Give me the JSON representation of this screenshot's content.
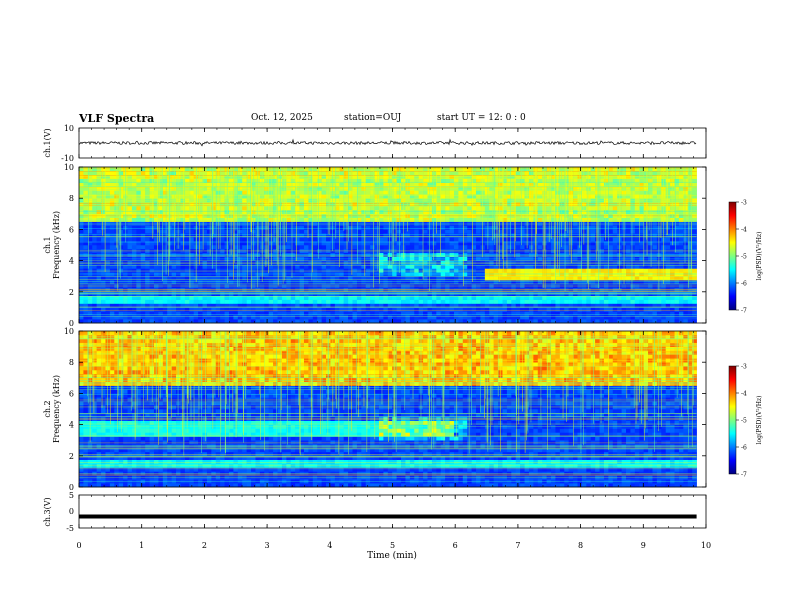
{
  "header": {
    "title": "VLF Spectra",
    "date": "Oct. 12, 2025",
    "station": "station=OUJ",
    "start_time": "start UT =   12: 0  : 0"
  },
  "chart_data": [
    {
      "type": "line",
      "name": "ch1-waveform",
      "ylabel": "ch.1(V)",
      "ylim": [
        -10,
        10
      ],
      "ytick_labels": [
        "10",
        "-10"
      ],
      "baseline_value": 0,
      "amplitude_approx": 1
    },
    {
      "type": "heatmap",
      "name": "ch1-spectrogram",
      "ylabel": "ch.1 Frequency (kHz)",
      "ylim": [
        0,
        10
      ],
      "yticks": [
        0,
        2,
        4,
        6,
        8,
        10
      ],
      "colorbar": {
        "label": "log(PSD)(V²/Hz)",
        "range": [
          -7,
          -3
        ],
        "ticks": [
          -3,
          -4,
          -5,
          -6,
          -7
        ]
      }
    },
    {
      "type": "heatmap",
      "name": "ch2-spectrogram",
      "ylabel": "ch.2 Frequency (kHz)",
      "ylim": [
        0,
        10
      ],
      "yticks": [
        0,
        2,
        4,
        6,
        8,
        10
      ],
      "colorbar": {
        "label": "log(PSD)(V²/Hz)",
        "range": [
          -7,
          -3
        ],
        "ticks": [
          -3,
          -4,
          -5,
          -6,
          -7
        ]
      }
    },
    {
      "type": "line",
      "name": "ch3-waveform",
      "ylabel": "ch.3(V)",
      "ylim": [
        -5,
        5
      ],
      "ytick_labels": [
        "5",
        "0",
        "-5"
      ],
      "baseline_value": -1.5
    }
  ],
  "xaxis": {
    "xlabel": "Time (min)",
    "xlim": [
      0,
      10
    ],
    "xticks": [
      0,
      1,
      2,
      3,
      4,
      5,
      6,
      7,
      8,
      9,
      10
    ],
    "data_end": 9.85
  },
  "colors": {
    "background": "#ffffff",
    "axis": "#000000",
    "waveform": "#000000",
    "colormap": [
      "#00007f",
      "#0000ff",
      "#007fff",
      "#00ffff",
      "#7fff7f",
      "#ffff00",
      "#ff7f00",
      "#ff0000",
      "#7f0000"
    ]
  }
}
